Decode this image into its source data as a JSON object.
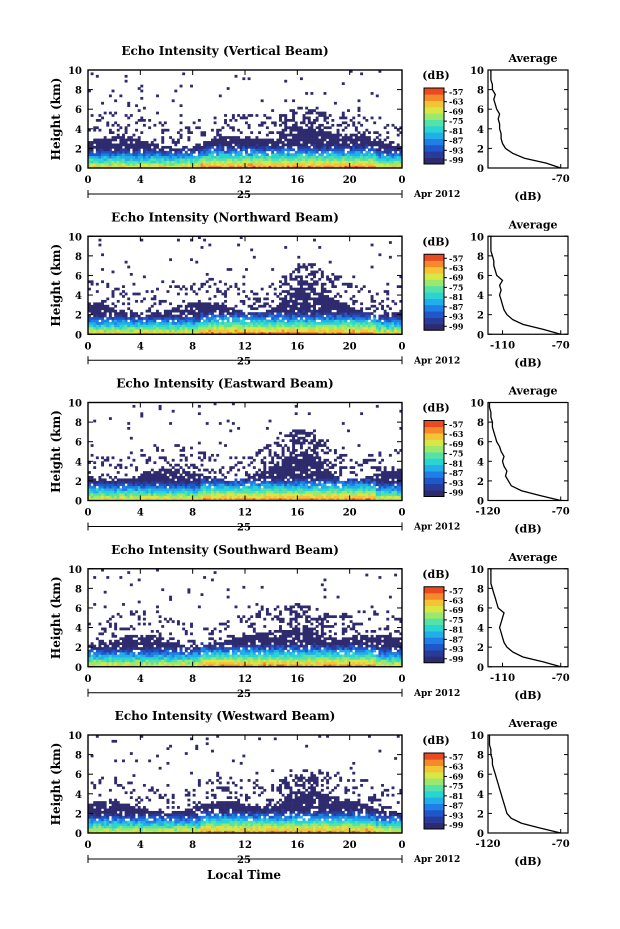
{
  "figure": {
    "xlabel": "Local Time",
    "colors": {
      "colormap": [
        "#2e2a6e",
        "#283a9a",
        "#1f56c8",
        "#1f7fe6",
        "#22aee8",
        "#2ad4d2",
        "#55e2a8",
        "#9ae86e",
        "#d8e646",
        "#f4c436",
        "#f48a2a",
        "#ea4a22"
      ],
      "ink": "#000000"
    }
  },
  "chart_data": [
    {
      "type": "heatmap",
      "title": "Echo Intensity (Vertical Beam)",
      "ylabel": "Height (km)",
      "xlim": [
        0,
        24
      ],
      "ylim": [
        0,
        10
      ],
      "x_ticks": [
        "0",
        "4",
        "8",
        "12",
        "16",
        "20",
        "0"
      ],
      "y_ticks": [
        "0",
        "2",
        "4",
        "6",
        "8",
        "10"
      ],
      "date_label": "25",
      "month_label": "Apr 2012",
      "colorbar": {
        "label": "(dB)",
        "ticks": [
          "-57",
          "-63",
          "-69",
          "-75",
          "-81",
          "-87",
          "-93",
          "-99"
        ],
        "range": [
          -99,
          -57
        ]
      },
      "profile": {
        "title": "Average",
        "xlabel": "(dB)",
        "x_ticks": [
          "-70"
        ],
        "xlim": [
          -120,
          -65
        ],
        "heights": [
          0,
          0.5,
          1,
          1.5,
          2,
          2.5,
          3,
          3.5,
          4,
          4.5,
          5,
          5.5,
          6,
          6.5,
          7,
          7.5,
          8,
          8.5,
          9,
          9.5,
          10
        ],
        "values": [
          -70,
          -80,
          -95,
          -103,
          -108,
          -110,
          -111,
          -111,
          -112,
          -112,
          -113,
          -112,
          -114,
          -115,
          -116,
          -115,
          -117,
          -117,
          -118,
          -118,
          -118
        ]
      }
    },
    {
      "type": "heatmap",
      "title": "Echo Intensity (Northward Beam)",
      "ylabel": "Height (km)",
      "xlim": [
        0,
        24
      ],
      "ylim": [
        0,
        10
      ],
      "x_ticks": [
        "0",
        "4",
        "8",
        "12",
        "16",
        "20",
        "0"
      ],
      "y_ticks": [
        "0",
        "2",
        "4",
        "6",
        "8",
        "10"
      ],
      "date_label": "25",
      "month_label": "Apr 2012",
      "colorbar": {
        "label": "(dB)",
        "ticks": [
          "-57",
          "-63",
          "-69",
          "-75",
          "-81",
          "-87",
          "-93",
          "-99"
        ],
        "range": [
          -99,
          -57
        ]
      },
      "profile": {
        "title": "Average",
        "xlabel": "(dB)",
        "x_ticks": [
          "-110",
          "-70"
        ],
        "xlim": [
          -120,
          -65
        ],
        "heights": [
          0,
          0.5,
          1,
          1.5,
          2,
          2.5,
          3,
          3.5,
          4,
          4.5,
          5,
          5.5,
          6,
          6.5,
          7,
          7.5,
          8,
          8.5,
          9,
          9.5,
          10
        ],
        "values": [
          -70,
          -82,
          -96,
          -103,
          -107,
          -109,
          -110,
          -111,
          -112,
          -111,
          -112,
          -110,
          -114,
          -115,
          -116,
          -116,
          -117,
          -118,
          -118,
          -118,
          -118
        ]
      }
    },
    {
      "type": "heatmap",
      "title": "Echo Intensity (Eastward Beam)",
      "ylabel": "Height (km)",
      "xlim": [
        0,
        24
      ],
      "ylim": [
        0,
        10
      ],
      "x_ticks": [
        "0",
        "4",
        "8",
        "12",
        "16",
        "20",
        "0"
      ],
      "y_ticks": [
        "0",
        "2",
        "4",
        "6",
        "8",
        "10"
      ],
      "date_label": "25",
      "month_label": "Apr 2012",
      "colorbar": {
        "label": "(dB)",
        "ticks": [
          "-57",
          "-63",
          "-69",
          "-75",
          "-81",
          "-87",
          "-93",
          "-99"
        ],
        "range": [
          -99,
          -57
        ]
      },
      "profile": {
        "title": "Average",
        "xlabel": "(dB)",
        "x_ticks": [
          "-120",
          "-70"
        ],
        "xlim": [
          -120,
          -65
        ],
        "heights": [
          0,
          0.5,
          1,
          1.5,
          2,
          2.5,
          3,
          3.5,
          4,
          4.5,
          5,
          5.5,
          6,
          6.5,
          7,
          7.5,
          8,
          8.5,
          9,
          9.5,
          10
        ],
        "values": [
          -70,
          -84,
          -97,
          -104,
          -106,
          -108,
          -107,
          -109,
          -110,
          -109,
          -111,
          -112,
          -114,
          -115,
          -116,
          -117,
          -117,
          -118,
          -118,
          -119,
          -119
        ]
      }
    },
    {
      "type": "heatmap",
      "title": "Echo Intensity (Southward Beam)",
      "ylabel": "Height (km)",
      "xlim": [
        0,
        24
      ],
      "ylim": [
        0,
        10
      ],
      "x_ticks": [
        "0",
        "4",
        "8",
        "12",
        "16",
        "20",
        "0"
      ],
      "y_ticks": [
        "0",
        "2",
        "4",
        "6",
        "8",
        "10"
      ],
      "date_label": "25",
      "month_label": "Apr 2012",
      "colorbar": {
        "label": "(dB)",
        "ticks": [
          "-57",
          "-63",
          "-69",
          "-75",
          "-81",
          "-87",
          "-93",
          "-99"
        ],
        "range": [
          -99,
          -57
        ]
      },
      "profile": {
        "title": "Average",
        "xlabel": "(dB)",
        "x_ticks": [
          "-110",
          "-70"
        ],
        "xlim": [
          -120,
          -65
        ],
        "heights": [
          0,
          0.5,
          1,
          1.5,
          2,
          2.5,
          3,
          3.5,
          4,
          4.5,
          5,
          5.5,
          6,
          6.5,
          7,
          7.5,
          8,
          8.5,
          9,
          9.5,
          10
        ],
        "values": [
          -70,
          -82,
          -96,
          -103,
          -107,
          -109,
          -110,
          -111,
          -112,
          -111,
          -110,
          -109,
          -113,
          -114,
          -115,
          -116,
          -117,
          -118,
          -118,
          -118,
          -118
        ]
      }
    },
    {
      "type": "heatmap",
      "title": "Echo Intensity (Westward Beam)",
      "ylabel": "Height (km)",
      "xlim": [
        0,
        24
      ],
      "ylim": [
        0,
        10
      ],
      "x_ticks": [
        "0",
        "4",
        "8",
        "12",
        "16",
        "20",
        "0"
      ],
      "y_ticks": [
        "0",
        "2",
        "4",
        "6",
        "8",
        "10"
      ],
      "date_label": "25",
      "month_label": "Apr 2012",
      "colorbar": {
        "label": "(dB)",
        "ticks": [
          "-57",
          "-63",
          "-69",
          "-75",
          "-81",
          "-87",
          "-93",
          "-99"
        ],
        "range": [
          -99,
          -57
        ]
      },
      "profile": {
        "title": "Average",
        "xlabel": "(dB)",
        "x_ticks": [
          "-120",
          "-70"
        ],
        "xlim": [
          -120,
          -65
        ],
        "heights": [
          0,
          0.5,
          1,
          1.5,
          2,
          2.5,
          3,
          3.5,
          4,
          4.5,
          5,
          5.5,
          6,
          6.5,
          7,
          7.5,
          8,
          8.5,
          9,
          9.5,
          10
        ],
        "values": [
          -70,
          -84,
          -97,
          -104,
          -107,
          -108,
          -109,
          -110,
          -111,
          -112,
          -113,
          -114,
          -115,
          -116,
          -117,
          -117,
          -118,
          -118,
          -119,
          -119,
          -119
        ]
      }
    }
  ]
}
